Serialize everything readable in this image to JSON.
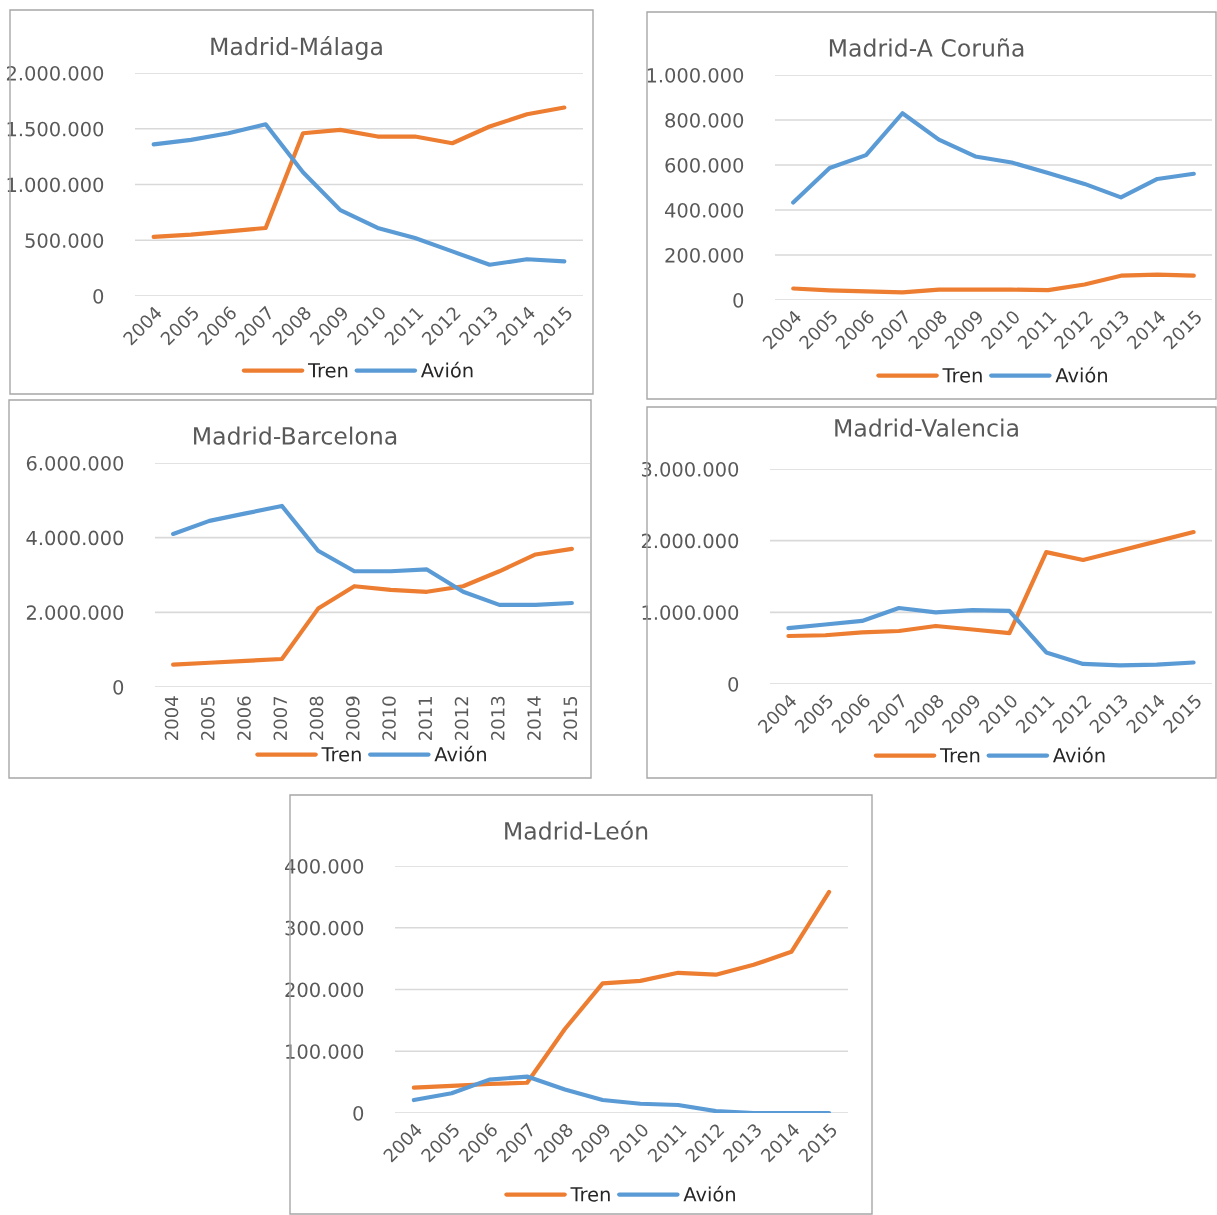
{
  "chart_data": [
    {
      "type": "line",
      "title": "Madrid-Málaga",
      "categories": [
        "2004",
        "2005",
        "2006",
        "2007",
        "2008",
        "2009",
        "2010",
        "2011",
        "2012",
        "2013",
        "2014",
        "2015"
      ],
      "ylim": [
        0,
        2000000
      ],
      "yticks": [
        {
          "value": 0,
          "label": "0"
        },
        {
          "value": 500000,
          "label": "500.000"
        },
        {
          "value": 1000000,
          "label": "1.000.000"
        },
        {
          "value": 1500000,
          "label": "1.500.000"
        },
        {
          "value": 2000000,
          "label": "2.000.000"
        }
      ],
      "grid": "y",
      "legend": "bottom",
      "series": [
        {
          "name": "Tren",
          "color": "#ed7d31",
          "values": [
            530000,
            550000,
            580000,
            610000,
            1460000,
            1490000,
            1430000,
            1430000,
            1370000,
            1520000,
            1630000,
            1690000
          ]
        },
        {
          "name": "Avión",
          "color": "#5b9bd5",
          "values": [
            1360000,
            1400000,
            1460000,
            1540000,
            1110000,
            770000,
            610000,
            520000,
            400000,
            280000,
            330000,
            310000
          ]
        }
      ]
    },
    {
      "type": "line",
      "title": "Madrid-A Coruña",
      "categories": [
        "2004",
        "2005",
        "2006",
        "2007",
        "2008",
        "2009",
        "2010",
        "2011",
        "2012",
        "2013",
        "2014",
        "2015"
      ],
      "ylim": [
        0,
        1000000
      ],
      "yticks": [
        {
          "value": 0,
          "label": "0"
        },
        {
          "value": 200000,
          "label": "200.000"
        },
        {
          "value": 400000,
          "label": "400.000"
        },
        {
          "value": 600000,
          "label": "600.000"
        },
        {
          "value": 800000,
          "label": "800.000"
        },
        {
          "value": 1000000,
          "label": "1.000.000"
        }
      ],
      "grid": "y",
      "legend": "bottom",
      "series": [
        {
          "name": "Tren",
          "color": "#ed7d31",
          "values": [
            51000,
            43000,
            38000,
            34000,
            46000,
            46000,
            46000,
            44000,
            69000,
            108000,
            113000,
            108000
          ]
        },
        {
          "name": "Avión",
          "color": "#5b9bd5",
          "values": [
            433000,
            587000,
            644000,
            830000,
            713000,
            638000,
            611000,
            564000,
            516000,
            456000,
            538000,
            561000
          ]
        }
      ]
    },
    {
      "type": "line",
      "title": "Madrid-Barcelona",
      "categories": [
        "2004",
        "2005",
        "2006",
        "2007",
        "2008",
        "2009",
        "2010",
        "2011",
        "2012",
        "2013",
        "2014",
        "2015"
      ],
      "ylim": [
        0,
        6000000
      ],
      "yticks": [
        {
          "value": 0,
          "label": "0"
        },
        {
          "value": 2000000,
          "label": "2.000.000"
        },
        {
          "value": 4000000,
          "label": "4.000.000"
        },
        {
          "value": 6000000,
          "label": "6.000.000"
        }
      ],
      "grid": "y",
      "legend": "bottom",
      "series": [
        {
          "name": "Tren",
          "color": "#ed7d31",
          "values": [
            600000,
            650000,
            700000,
            750000,
            2100000,
            2700000,
            2600000,
            2550000,
            2700000,
            3100000,
            3550000,
            3700000
          ]
        },
        {
          "name": "Avión",
          "color": "#5b9bd5",
          "values": [
            4100000,
            4450000,
            4650000,
            4850000,
            3650000,
            3100000,
            3100000,
            3150000,
            2550000,
            2200000,
            2200000,
            2250000
          ]
        }
      ]
    },
    {
      "type": "line",
      "title": "Madrid-Valencia",
      "categories": [
        "2004",
        "2005",
        "2006",
        "2007",
        "2008",
        "2009",
        "2010",
        "2011",
        "2012",
        "2013",
        "2014",
        "2015"
      ],
      "ylim": [
        0,
        3000000
      ],
      "yticks": [
        {
          "value": 0,
          "label": "0"
        },
        {
          "value": 1000000,
          "label": "1.000.000"
        },
        {
          "value": 2000000,
          "label": "2.000.000"
        },
        {
          "value": 3000000,
          "label": "3.000.000"
        }
      ],
      "grid": "y",
      "legend": "bottom",
      "series": [
        {
          "name": "Tren",
          "color": "#ed7d31",
          "values": [
            670000,
            680000,
            720000,
            740000,
            810000,
            760000,
            710000,
            1840000,
            1730000,
            1860000,
            1990000,
            2120000
          ]
        },
        {
          "name": "Avión",
          "color": "#5b9bd5",
          "values": [
            780000,
            830000,
            880000,
            1060000,
            1000000,
            1030000,
            1020000,
            440000,
            280000,
            260000,
            270000,
            300000
          ]
        }
      ]
    },
    {
      "type": "line",
      "title": "Madrid-León",
      "categories": [
        "2004",
        "2005",
        "2006",
        "2007",
        "2008",
        "2009",
        "2010",
        "2011",
        "2012",
        "2013",
        "2014",
        "2015"
      ],
      "ylim": [
        0,
        400000
      ],
      "yticks": [
        {
          "value": 0,
          "label": "0"
        },
        {
          "value": 100000,
          "label": "100.000"
        },
        {
          "value": 200000,
          "label": "200.000"
        },
        {
          "value": 300000,
          "label": "300.000"
        },
        {
          "value": 400000,
          "label": "400.000"
        }
      ],
      "grid": "y",
      "legend": "bottom",
      "series": [
        {
          "name": "Tren",
          "color": "#ed7d31",
          "values": [
            41000,
            44000,
            47000,
            49000,
            136000,
            210000,
            214000,
            227000,
            224000,
            240000,
            261000,
            358000
          ]
        },
        {
          "name": "Avión",
          "color": "#5b9bd5",
          "values": [
            21000,
            32000,
            54000,
            59000,
            38000,
            21000,
            15000,
            13000,
            3000,
            0,
            0,
            0
          ]
        }
      ]
    }
  ]
}
